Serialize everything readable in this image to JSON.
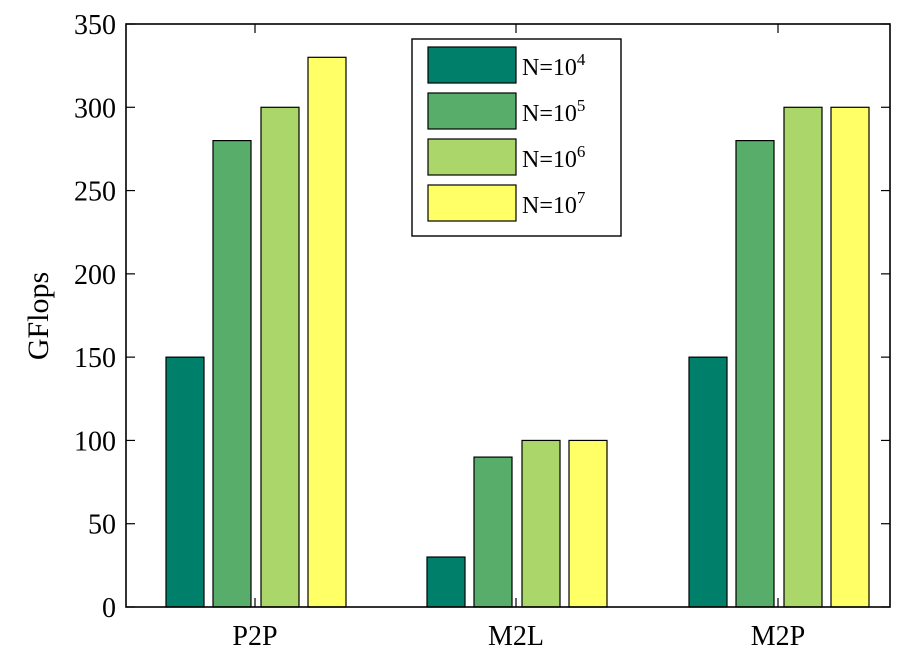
{
  "chart_data": {
    "type": "bar",
    "categories": [
      "P2P",
      "M2L",
      "M2P"
    ],
    "series": [
      {
        "name": "N=10^4",
        "label_base": "N=10",
        "label_exp": "4",
        "color": "#00806a",
        "values": [
          150,
          30,
          150
        ]
      },
      {
        "name": "N=10^5",
        "label_base": "N=10",
        "label_exp": "5",
        "color": "#58ad6a",
        "values": [
          280,
          90,
          280
        ]
      },
      {
        "name": "N=10^6",
        "label_base": "N=10",
        "label_exp": "6",
        "color": "#aad66a",
        "values": [
          300,
          100,
          300
        ]
      },
      {
        "name": "N=10^7",
        "label_base": "N=10",
        "label_exp": "7",
        "color": "#ffff66",
        "values": [
          330,
          100,
          300
        ]
      }
    ],
    "title": "",
    "xlabel": "",
    "ylabel": "GFlops",
    "ylim": [
      0,
      350
    ],
    "yticks": [
      0,
      50,
      100,
      150,
      200,
      250,
      300,
      350
    ],
    "grid": false,
    "legend_position": "top-center"
  }
}
